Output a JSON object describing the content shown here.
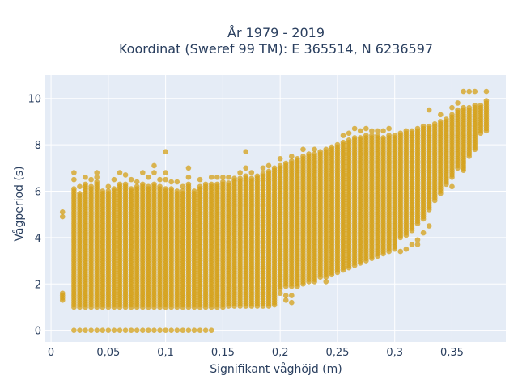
{
  "chart_data": {
    "type": "scatter",
    "title_line1": "År 1979 - 2019",
    "title_line2": "Koordinat (Sweref 99 TM): E 365514, N 6236597",
    "xlabel": "Signifikant våghöjd (m)",
    "ylabel": "Vågperiod (s)",
    "xlim": [
      -0.005,
      0.397
    ],
    "ylim": [
      -0.5,
      11.0
    ],
    "x_ticks": [
      0,
      0.05,
      0.1,
      0.15,
      0.2,
      0.25,
      0.3,
      0.35
    ],
    "x_tick_labels": [
      "0",
      "0,05",
      "0,1",
      "0,15",
      "0,2",
      "0,25",
      "0,3",
      "0,35"
    ],
    "y_ticks": [
      0,
      2,
      4,
      6,
      8,
      10
    ],
    "y_tick_labels": [
      "0",
      "2",
      "4",
      "6",
      "8",
      "10"
    ],
    "grid": true,
    "colors": {
      "marker": "#d4a017",
      "plot_bg": "#e5ecf6",
      "grid": "#ffffff",
      "text": "#2a3f5f"
    },
    "columns": [
      {
        "x": 0.01,
        "ymin": 1.3,
        "ymax": 1.6,
        "extra": [
          4.9,
          5.1
        ]
      },
      {
        "x": 0.02,
        "ymin": 1.0,
        "ymax": 6.1,
        "extra": [
          0,
          6.5,
          6.8
        ]
      },
      {
        "x": 0.025,
        "ymin": 1.0,
        "ymax": 5.9,
        "extra": [
          0,
          6.2
        ]
      },
      {
        "x": 0.03,
        "ymin": 1.0,
        "ymax": 6.3,
        "extra": [
          0,
          6.6
        ]
      },
      {
        "x": 0.035,
        "ymin": 1.0,
        "ymax": 6.2,
        "extra": [
          0,
          6.5
        ]
      },
      {
        "x": 0.04,
        "ymin": 1.0,
        "ymax": 6.4,
        "extra": [
          0,
          6.6,
          6.8
        ]
      },
      {
        "x": 0.045,
        "ymin": 1.0,
        "ymax": 6.0,
        "extra": [
          0
        ]
      },
      {
        "x": 0.05,
        "ymin": 1.0,
        "ymax": 6.0,
        "extra": [
          0,
          6.2
        ]
      },
      {
        "x": 0.055,
        "ymin": 1.0,
        "ymax": 6.1,
        "extra": [
          0,
          6.5
        ]
      },
      {
        "x": 0.06,
        "ymin": 1.0,
        "ymax": 6.3,
        "extra": [
          0,
          6.8
        ]
      },
      {
        "x": 0.065,
        "ymin": 1.0,
        "ymax": 6.3,
        "extra": [
          0,
          6.7
        ]
      },
      {
        "x": 0.07,
        "ymin": 1.0,
        "ymax": 6.1,
        "extra": [
          0,
          6.5
        ]
      },
      {
        "x": 0.075,
        "ymin": 1.0,
        "ymax": 6.2,
        "extra": [
          0,
          6.4
        ]
      },
      {
        "x": 0.08,
        "ymin": 1.0,
        "ymax": 6.3,
        "extra": [
          0,
          6.8
        ]
      },
      {
        "x": 0.085,
        "ymin": 1.0,
        "ymax": 6.2,
        "extra": [
          0,
          6.6
        ]
      },
      {
        "x": 0.09,
        "ymin": 1.0,
        "ymax": 6.3,
        "extra": [
          0,
          6.8,
          7.1
        ]
      },
      {
        "x": 0.095,
        "ymin": 1.0,
        "ymax": 6.2,
        "extra": [
          0,
          6.5
        ]
      },
      {
        "x": 0.1,
        "ymin": 1.0,
        "ymax": 6.1,
        "extra": [
          0,
          6.5,
          6.8,
          7.7
        ]
      },
      {
        "x": 0.105,
        "ymin": 1.0,
        "ymax": 6.1,
        "extra": [
          0,
          6.4
        ]
      },
      {
        "x": 0.11,
        "ymin": 1.0,
        "ymax": 6.0,
        "extra": [
          0,
          6.4
        ]
      },
      {
        "x": 0.115,
        "ymin": 1.0,
        "ymax": 6.0,
        "extra": [
          0,
          6.2
        ]
      },
      {
        "x": 0.12,
        "ymin": 1.0,
        "ymax": 6.3,
        "extra": [
          0,
          6.6,
          7.0
        ]
      },
      {
        "x": 0.125,
        "ymin": 1.0,
        "ymax": 6.0,
        "extra": [
          0
        ]
      },
      {
        "x": 0.13,
        "ymin": 1.0,
        "ymax": 6.2,
        "extra": [
          0,
          6.5
        ]
      },
      {
        "x": 0.135,
        "ymin": 1.0,
        "ymax": 6.3,
        "extra": [
          0
        ]
      },
      {
        "x": 0.14,
        "ymin": 1.0,
        "ymax": 6.3,
        "extra": [
          0,
          6.6
        ]
      },
      {
        "x": 0.145,
        "ymin": 1.0,
        "ymax": 6.3,
        "extra": [
          6.6
        ]
      },
      {
        "x": 0.15,
        "ymin": 1.0,
        "ymax": 6.4,
        "extra": [
          6.6
        ]
      },
      {
        "x": 0.155,
        "ymin": 1.05,
        "ymax": 6.4,
        "extra": [
          6.6
        ]
      },
      {
        "x": 0.16,
        "ymin": 1.05,
        "ymax": 6.6,
        "extra": []
      },
      {
        "x": 0.165,
        "ymin": 1.05,
        "ymax": 6.6,
        "extra": [
          6.8
        ]
      },
      {
        "x": 0.17,
        "ymin": 1.05,
        "ymax": 6.7,
        "extra": [
          7.0,
          7.7
        ]
      },
      {
        "x": 0.175,
        "ymin": 1.05,
        "ymax": 6.6,
        "extra": [
          6.8
        ]
      },
      {
        "x": 0.18,
        "ymin": 1.05,
        "ymax": 6.7,
        "extra": []
      },
      {
        "x": 0.185,
        "ymin": 1.05,
        "ymax": 6.8,
        "extra": [
          7.0
        ]
      },
      {
        "x": 0.19,
        "ymin": 1.05,
        "ymax": 6.9,
        "extra": [
          7.1
        ]
      },
      {
        "x": 0.195,
        "ymin": 1.1,
        "ymax": 7.0,
        "extra": []
      },
      {
        "x": 0.2,
        "ymin": 1.8,
        "ymax": 7.1,
        "extra": [
          1.6,
          7.4
        ]
      },
      {
        "x": 0.205,
        "ymin": 1.9,
        "ymax": 7.2,
        "extra": [
          1.3,
          1.5
        ]
      },
      {
        "x": 0.21,
        "ymin": 1.9,
        "ymax": 7.3,
        "extra": [
          1.2,
          1.5,
          7.5
        ]
      },
      {
        "x": 0.215,
        "ymin": 1.9,
        "ymax": 7.4,
        "extra": []
      },
      {
        "x": 0.22,
        "ymin": 2.0,
        "ymax": 7.5,
        "extra": [
          7.8
        ]
      },
      {
        "x": 0.225,
        "ymin": 2.1,
        "ymax": 7.6,
        "extra": []
      },
      {
        "x": 0.23,
        "ymin": 2.1,
        "ymax": 7.6,
        "extra": [
          7.8
        ]
      },
      {
        "x": 0.235,
        "ymin": 2.3,
        "ymax": 7.7,
        "extra": []
      },
      {
        "x": 0.24,
        "ymin": 2.3,
        "ymax": 7.8,
        "extra": [
          2.1
        ]
      },
      {
        "x": 0.245,
        "ymin": 2.4,
        "ymax": 7.9,
        "extra": []
      },
      {
        "x": 0.25,
        "ymin": 2.5,
        "ymax": 8.0,
        "extra": []
      },
      {
        "x": 0.255,
        "ymin": 2.6,
        "ymax": 8.1,
        "extra": [
          8.4
        ]
      },
      {
        "x": 0.26,
        "ymin": 2.7,
        "ymax": 8.2,
        "extra": [
          8.5
        ]
      },
      {
        "x": 0.265,
        "ymin": 2.8,
        "ymax": 8.3,
        "extra": [
          8.7
        ]
      },
      {
        "x": 0.27,
        "ymin": 2.9,
        "ymax": 8.3,
        "extra": [
          8.6
        ]
      },
      {
        "x": 0.275,
        "ymin": 3.0,
        "ymax": 8.4,
        "extra": [
          8.7
        ]
      },
      {
        "x": 0.28,
        "ymin": 3.1,
        "ymax": 8.4,
        "extra": [
          8.6
        ]
      },
      {
        "x": 0.285,
        "ymin": 3.2,
        "ymax": 8.4,
        "extra": [
          8.6
        ]
      },
      {
        "x": 0.29,
        "ymin": 3.3,
        "ymax": 8.3,
        "extra": [
          8.6
        ]
      },
      {
        "x": 0.295,
        "ymin": 3.4,
        "ymax": 8.4,
        "extra": [
          8.7
        ]
      },
      {
        "x": 0.3,
        "ymin": 3.5,
        "ymax": 8.4,
        "extra": []
      },
      {
        "x": 0.305,
        "ymin": 4.0,
        "ymax": 8.5,
        "extra": [
          3.4
        ]
      },
      {
        "x": 0.31,
        "ymin": 4.1,
        "ymax": 8.6,
        "extra": [
          3.5
        ]
      },
      {
        "x": 0.315,
        "ymin": 4.3,
        "ymax": 8.6,
        "extra": [
          3.7
        ]
      },
      {
        "x": 0.32,
        "ymin": 4.6,
        "ymax": 8.7,
        "extra": [
          3.7,
          3.9
        ]
      },
      {
        "x": 0.325,
        "ymin": 4.8,
        "ymax": 8.8,
        "extra": [
          4.2
        ]
      },
      {
        "x": 0.33,
        "ymin": 5.2,
        "ymax": 8.8,
        "extra": [
          4.5,
          9.5
        ]
      },
      {
        "x": 0.335,
        "ymin": 5.6,
        "ymax": 8.9,
        "extra": []
      },
      {
        "x": 0.34,
        "ymin": 5.9,
        "ymax": 9.0,
        "extra": [
          9.3
        ]
      },
      {
        "x": 0.345,
        "ymin": 6.3,
        "ymax": 9.1,
        "extra": []
      },
      {
        "x": 0.35,
        "ymin": 6.6,
        "ymax": 9.3,
        "extra": [
          6.2,
          9.6
        ]
      },
      {
        "x": 0.355,
        "ymin": 7.0,
        "ymax": 9.5,
        "extra": [
          9.8
        ]
      },
      {
        "x": 0.36,
        "ymin": 7.0,
        "ymax": 9.6,
        "extra": [
          6.9,
          10.3
        ]
      },
      {
        "x": 0.365,
        "ymin": 7.5,
        "ymax": 9.6,
        "extra": [
          10.3
        ]
      },
      {
        "x": 0.37,
        "ymin": 7.8,
        "ymax": 9.7,
        "extra": [
          10.3
        ]
      },
      {
        "x": 0.375,
        "ymin": 8.5,
        "ymax": 9.7,
        "extra": []
      },
      {
        "x": 0.38,
        "ymin": 8.6,
        "ymax": 9.9,
        "extra": [
          10.3
        ]
      }
    ]
  }
}
